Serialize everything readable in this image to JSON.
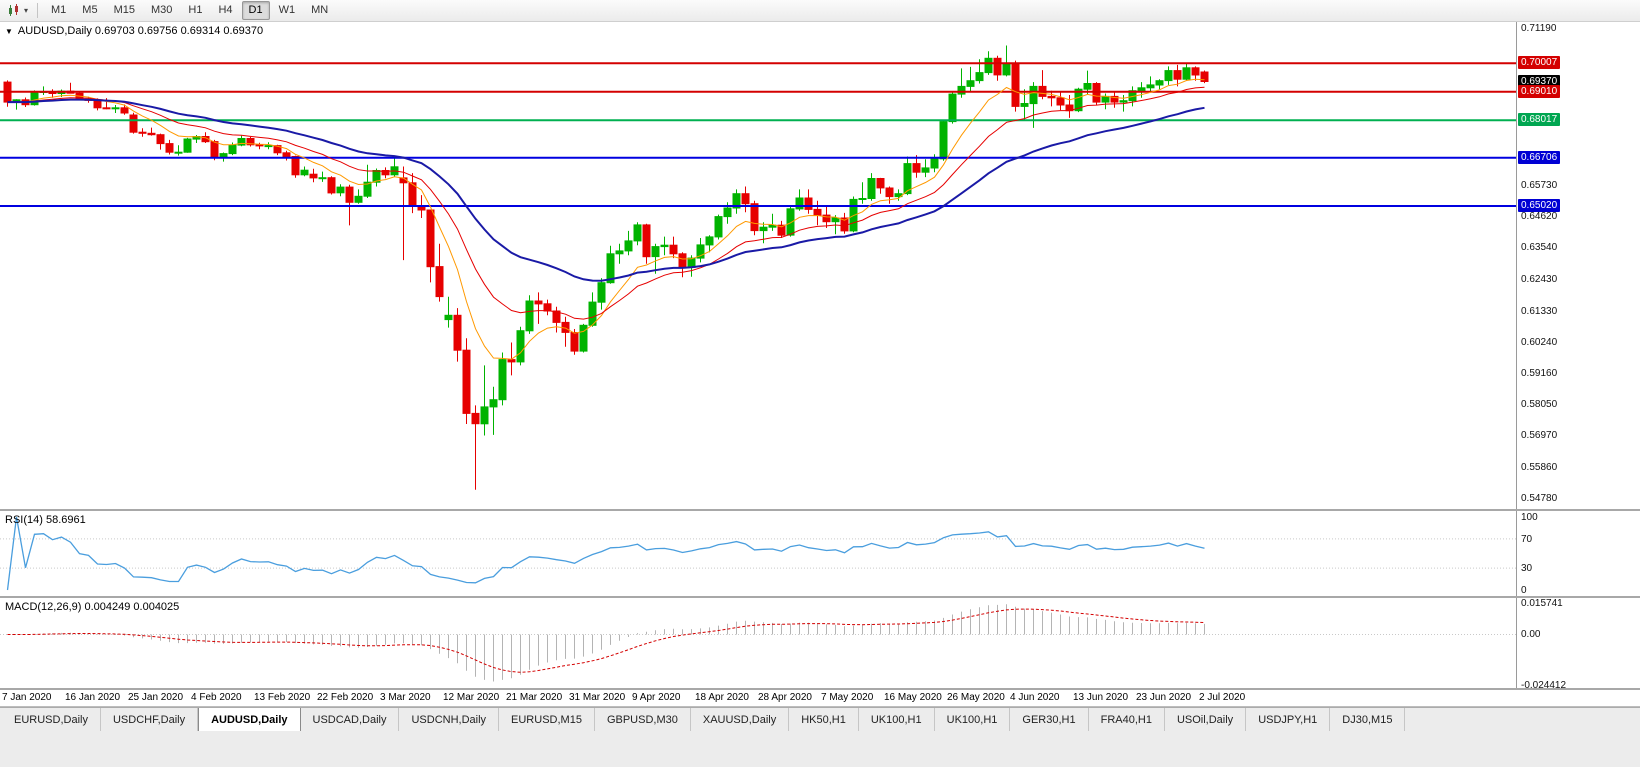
{
  "toolbar": {
    "timeframes": [
      "M1",
      "M5",
      "M15",
      "M30",
      "H1",
      "H4",
      "D1",
      "W1",
      "MN"
    ],
    "active_timeframe": "D1"
  },
  "chart": {
    "info_line": "AUDUSD,Daily 0.69703 0.69756 0.69314 0.69370",
    "hlines": [
      {
        "value": 0.70007,
        "color": "#d40000",
        "width": 2
      },
      {
        "value": 0.6901,
        "color": "#d40000",
        "width": 2
      },
      {
        "value": 0.68017,
        "color": "#00b050",
        "width": 2
      },
      {
        "value": 0.66706,
        "color": "#0000e0",
        "width": 2
      },
      {
        "value": 0.6502,
        "color": "#0000e0",
        "width": 2
      }
    ],
    "price_axis": {
      "plain_labels": [
        {
          "value": 0.7119,
          "label": "0.71190"
        },
        {
          "value": 0.6573,
          "label": "0.65730"
        },
        {
          "value": 0.6462,
          "label": "0.64620"
        },
        {
          "value": 0.6354,
          "label": "0.63540"
        },
        {
          "value": 0.6243,
          "label": "0.62430"
        },
        {
          "value": 0.6133,
          "label": "0.61330"
        },
        {
          "value": 0.6024,
          "label": "0.60240"
        },
        {
          "value": 0.5916,
          "label": "0.59160"
        },
        {
          "value": 0.5805,
          "label": "0.58050"
        },
        {
          "value": 0.5697,
          "label": "0.56970"
        },
        {
          "value": 0.5586,
          "label": "0.55860"
        },
        {
          "value": 0.5478,
          "label": "0.54780"
        }
      ],
      "badges": [
        {
          "value": 0.70007,
          "label": "0.70007",
          "color": "#d40000"
        },
        {
          "value": 0.6937,
          "label": "0.69370",
          "color": "#000000"
        },
        {
          "value": 0.6901,
          "label": "0.69010",
          "color": "#d40000"
        },
        {
          "value": 0.68017,
          "label": "0.68017",
          "color": "#00a651"
        },
        {
          "value": 0.66706,
          "label": "0.66706",
          "color": "#0000d4"
        },
        {
          "value": 0.6502,
          "label": "0.65020",
          "color": "#0000d4"
        }
      ]
    }
  },
  "rsi": {
    "label": "RSI(14) 58.6961",
    "period": 14,
    "current": 58.6961,
    "color": "#4a9ede",
    "scale_labels": [
      {
        "value": 100,
        "label": "100"
      },
      {
        "value": 70,
        "label": "70"
      },
      {
        "value": 30,
        "label": "30"
      },
      {
        "value": 0,
        "label": "0"
      }
    ],
    "levels": [
      70,
      30
    ]
  },
  "macd": {
    "label": "MACD(12,26,9) 0.004249 0.004025",
    "fast": 12,
    "slow": 26,
    "signal": 9,
    "current_main": 0.004249,
    "current_signal": 0.004025,
    "hist_color": "#b4b4b4",
    "signal_color": "#d40000",
    "scale": {
      "max": 0.015741,
      "min": -0.024412
    },
    "scale_labels": [
      {
        "value": 0.015741,
        "label": "0.015741"
      },
      {
        "value": 0,
        "label": "0.00"
      },
      {
        "value": -0.024412,
        "label": "-0.024412"
      }
    ]
  },
  "tabs": {
    "labels": [
      "EURUSD,Daily",
      "USDCHF,Daily",
      "AUDUSD,Daily",
      "USDCAD,Daily",
      "USDCNH,Daily",
      "EURUSD,M15",
      "GBPUSD,M30",
      "XAUUSD,Daily",
      "HK50,H1",
      "UK100,H1",
      "UK100,H1",
      "GER30,H1",
      "FRA40,H1",
      "USOil,Daily",
      "USDJPY,H1",
      "DJ30,M15"
    ],
    "active_index": 2
  },
  "colors": {
    "up": "#00b300",
    "down": "#e60000"
  },
  "chart_data": {
    "type": "candlestick",
    "symbol": "AUDUSD",
    "timeframe": "Daily",
    "title": "AUDUSD,Daily",
    "ylim": [
      0.545,
      0.7145
    ],
    "grid": false,
    "x_labels": [
      "7 Jan 2020",
      "16 Jan 2020",
      "25 Jan 2020",
      "4 Feb 2020",
      "13 Feb 2020",
      "22 Feb 2020",
      "3 Mar 2020",
      "12 Mar 2020",
      "21 Mar 2020",
      "31 Mar 2020",
      "9 Apr 2020",
      "18 Apr 2020",
      "28 Apr 2020",
      "7 May 2020",
      "16 May 2020",
      "26 May 2020",
      "4 Jun 2020",
      "13 Jun 2020",
      "23 Jun 2020",
      "2 Jul 2020"
    ],
    "label_every_n_bars": 7,
    "moving_averages": [
      {
        "period": 8,
        "color": "#ff9900",
        "width": 1
      },
      {
        "period": 17,
        "color": "#e60000",
        "width": 1
      },
      {
        "period": 34,
        "color": "#1a1aa6",
        "width": 2
      }
    ],
    "indicators": {
      "rsi": {
        "period": 14,
        "current": 58.6961
      },
      "macd": {
        "fast": 12,
        "slow": 26,
        "signal": 9,
        "current_main": 0.004249,
        "current_signal": 0.004025
      }
    },
    "ohlc": [
      [
        0.6935,
        0.6941,
        0.6849,
        0.6865
      ],
      [
        0.6865,
        0.6875,
        0.6839,
        0.6873
      ],
      [
        0.6873,
        0.6881,
        0.6848,
        0.6856
      ],
      [
        0.6856,
        0.6906,
        0.6853,
        0.69
      ],
      [
        0.69,
        0.692,
        0.689,
        0.6902
      ],
      [
        0.6902,
        0.691,
        0.688,
        0.6895
      ],
      [
        0.6895,
        0.6909,
        0.6883,
        0.6903
      ],
      [
        0.6903,
        0.6933,
        0.6895,
        0.6896
      ],
      [
        0.6896,
        0.69,
        0.6872,
        0.6875
      ],
      [
        0.6875,
        0.6884,
        0.6863,
        0.6871
      ],
      [
        0.6871,
        0.6878,
        0.6836,
        0.6845
      ],
      [
        0.6845,
        0.6879,
        0.684,
        0.6843
      ],
      [
        0.6843,
        0.6855,
        0.6827,
        0.6845
      ],
      [
        0.6845,
        0.6857,
        0.6821,
        0.6827
      ],
      [
        0.682,
        0.6828,
        0.6755,
        0.676
      ],
      [
        0.676,
        0.6774,
        0.6744,
        0.6756
      ],
      [
        0.6756,
        0.6776,
        0.6748,
        0.6751
      ],
      [
        0.6751,
        0.6755,
        0.6699,
        0.672
      ],
      [
        0.672,
        0.6733,
        0.6682,
        0.669
      ],
      [
        0.669,
        0.6714,
        0.6678,
        0.669
      ],
      [
        0.669,
        0.674,
        0.6688,
        0.6736
      ],
      [
        0.6736,
        0.675,
        0.6722,
        0.6745
      ],
      [
        0.6745,
        0.676,
        0.6722,
        0.6727
      ],
      [
        0.6727,
        0.6733,
        0.6662,
        0.667
      ],
      [
        0.667,
        0.6689,
        0.6657,
        0.6685
      ],
      [
        0.6685,
        0.6724,
        0.668,
        0.6715
      ],
      [
        0.6715,
        0.6748,
        0.6711,
        0.6738
      ],
      [
        0.6738,
        0.6744,
        0.671,
        0.6716
      ],
      [
        0.6716,
        0.6723,
        0.67,
        0.6712
      ],
      [
        0.6712,
        0.6725,
        0.67,
        0.6713
      ],
      [
        0.6713,
        0.6716,
        0.668,
        0.6688
      ],
      [
        0.6688,
        0.6695,
        0.6661,
        0.6675
      ],
      [
        0.6675,
        0.6678,
        0.6601,
        0.6611
      ],
      [
        0.6611,
        0.664,
        0.6606,
        0.6627
      ],
      [
        0.6613,
        0.6632,
        0.6585,
        0.66
      ],
      [
        0.66,
        0.6622,
        0.6586,
        0.6601
      ],
      [
        0.6601,
        0.6606,
        0.6542,
        0.6548
      ],
      [
        0.6548,
        0.6578,
        0.6536,
        0.6568
      ],
      [
        0.6568,
        0.6576,
        0.6434,
        0.6515
      ],
      [
        0.6515,
        0.656,
        0.651,
        0.6536
      ],
      [
        0.6536,
        0.6646,
        0.653,
        0.6585
      ],
      [
        0.6585,
        0.6633,
        0.657,
        0.6626
      ],
      [
        0.6626,
        0.6637,
        0.6599,
        0.6611
      ],
      [
        0.6611,
        0.667,
        0.6605,
        0.6639
      ],
      [
        0.66,
        0.664,
        0.6313,
        0.6583
      ],
      [
        0.6583,
        0.6617,
        0.6477,
        0.6502
      ],
      [
        0.6502,
        0.654,
        0.646,
        0.6488
      ],
      [
        0.6488,
        0.6489,
        0.6235,
        0.629
      ],
      [
        0.629,
        0.637,
        0.6168,
        0.6185
      ],
      [
        0.6105,
        0.6185,
        0.6077,
        0.612
      ],
      [
        0.612,
        0.6145,
        0.5958,
        0.5998
      ],
      [
        0.5998,
        0.604,
        0.574,
        0.5777
      ],
      [
        0.5777,
        0.5805,
        0.551,
        0.5741
      ],
      [
        0.5741,
        0.5945,
        0.57,
        0.58
      ],
      [
        0.58,
        0.587,
        0.5702,
        0.5825
      ],
      [
        0.5825,
        0.599,
        0.5805,
        0.5965
      ],
      [
        0.5965,
        0.6025,
        0.591,
        0.5957
      ],
      [
        0.5957,
        0.608,
        0.5945,
        0.6066
      ],
      [
        0.6066,
        0.619,
        0.6055,
        0.617
      ],
      [
        0.617,
        0.62,
        0.609,
        0.616
      ],
      [
        0.616,
        0.6175,
        0.612,
        0.6135
      ],
      [
        0.6135,
        0.615,
        0.606,
        0.6095
      ],
      [
        0.6095,
        0.6115,
        0.601,
        0.606
      ],
      [
        0.606,
        0.6072,
        0.5982,
        0.5995
      ],
      [
        0.5995,
        0.609,
        0.599,
        0.6085
      ],
      [
        0.6085,
        0.62,
        0.608,
        0.6166
      ],
      [
        0.6166,
        0.625,
        0.614,
        0.6234
      ],
      [
        0.6234,
        0.6363,
        0.623,
        0.6335
      ],
      [
        0.6335,
        0.637,
        0.63,
        0.6345
      ],
      [
        0.6345,
        0.6415,
        0.633,
        0.638
      ],
      [
        0.638,
        0.6445,
        0.6365,
        0.6436
      ],
      [
        0.6436,
        0.644,
        0.63,
        0.6325
      ],
      [
        0.6325,
        0.637,
        0.6265,
        0.636
      ],
      [
        0.636,
        0.6395,
        0.633,
        0.6365
      ],
      [
        0.6365,
        0.6395,
        0.632,
        0.6335
      ],
      [
        0.6335,
        0.634,
        0.6253,
        0.6287
      ],
      [
        0.6287,
        0.633,
        0.6255,
        0.632
      ],
      [
        0.632,
        0.639,
        0.6305,
        0.6366
      ],
      [
        0.6366,
        0.64,
        0.634,
        0.6394
      ],
      [
        0.6394,
        0.6472,
        0.6385,
        0.6465
      ],
      [
        0.6465,
        0.6515,
        0.644,
        0.6495
      ],
      [
        0.6495,
        0.656,
        0.6475,
        0.6545
      ],
      [
        0.6545,
        0.657,
        0.648,
        0.651
      ],
      [
        0.651,
        0.652,
        0.64,
        0.6416
      ],
      [
        0.6416,
        0.6445,
        0.6372,
        0.6428
      ],
      [
        0.6428,
        0.6475,
        0.6415,
        0.6435
      ],
      [
        0.6435,
        0.645,
        0.639,
        0.64
      ],
      [
        0.64,
        0.65,
        0.6395,
        0.6492
      ],
      [
        0.6492,
        0.656,
        0.6485,
        0.653
      ],
      [
        0.653,
        0.656,
        0.6475,
        0.649
      ],
      [
        0.649,
        0.652,
        0.6435,
        0.647
      ],
      [
        0.647,
        0.6505,
        0.6425,
        0.6447
      ],
      [
        0.6447,
        0.647,
        0.6403,
        0.646
      ],
      [
        0.646,
        0.6478,
        0.6405,
        0.6415
      ],
      [
        0.6415,
        0.6535,
        0.641,
        0.6525
      ],
      [
        0.6525,
        0.6585,
        0.651,
        0.6528
      ],
      [
        0.6528,
        0.6617,
        0.652,
        0.6598
      ],
      [
        0.6598,
        0.66,
        0.6545,
        0.6565
      ],
      [
        0.6565,
        0.657,
        0.651,
        0.6535
      ],
      [
        0.6535,
        0.656,
        0.652,
        0.6545
      ],
      [
        0.6545,
        0.6675,
        0.654,
        0.665
      ],
      [
        0.665,
        0.668,
        0.6601,
        0.662
      ],
      [
        0.662,
        0.6665,
        0.6603,
        0.6635
      ],
      [
        0.6635,
        0.6683,
        0.662,
        0.6667
      ],
      [
        0.6667,
        0.68,
        0.666,
        0.6797
      ],
      [
        0.6797,
        0.69,
        0.679,
        0.6893
      ],
      [
        0.6893,
        0.6983,
        0.688,
        0.692
      ],
      [
        0.692,
        0.6988,
        0.69,
        0.694
      ],
      [
        0.694,
        0.7015,
        0.693,
        0.6968
      ],
      [
        0.6968,
        0.7043,
        0.696,
        0.7018
      ],
      [
        0.7018,
        0.7027,
        0.694,
        0.696
      ],
      [
        0.696,
        0.7063,
        0.6955,
        0.7
      ],
      [
        0.7,
        0.701,
        0.6832,
        0.685
      ],
      [
        0.685,
        0.691,
        0.68,
        0.686
      ],
      [
        0.686,
        0.6935,
        0.6775,
        0.692
      ],
      [
        0.692,
        0.6977,
        0.6875,
        0.6885
      ],
      [
        0.6885,
        0.6905,
        0.685,
        0.688
      ],
      [
        0.688,
        0.69,
        0.6837,
        0.6855
      ],
      [
        0.6855,
        0.689,
        0.681,
        0.6835
      ],
      [
        0.6835,
        0.6915,
        0.683,
        0.691
      ],
      [
        0.691,
        0.6975,
        0.689,
        0.693
      ],
      [
        0.693,
        0.6935,
        0.6855,
        0.6865
      ],
      [
        0.6865,
        0.6895,
        0.684,
        0.6885
      ],
      [
        0.6885,
        0.69,
        0.6845,
        0.6865
      ],
      [
        0.6865,
        0.689,
        0.6832,
        0.687
      ],
      [
        0.687,
        0.692,
        0.685,
        0.6905
      ],
      [
        0.6905,
        0.6935,
        0.688,
        0.6915
      ],
      [
        0.6915,
        0.6955,
        0.69,
        0.6925
      ],
      [
        0.6925,
        0.6945,
        0.691,
        0.694
      ],
      [
        0.694,
        0.699,
        0.6925,
        0.6975
      ],
      [
        0.6975,
        0.6995,
        0.692,
        0.6945
      ],
      [
        0.6945,
        0.7,
        0.694,
        0.6985
      ],
      [
        0.6985,
        0.699,
        0.694,
        0.696
      ],
      [
        0.69703,
        0.69756,
        0.69314,
        0.6937
      ]
    ]
  }
}
